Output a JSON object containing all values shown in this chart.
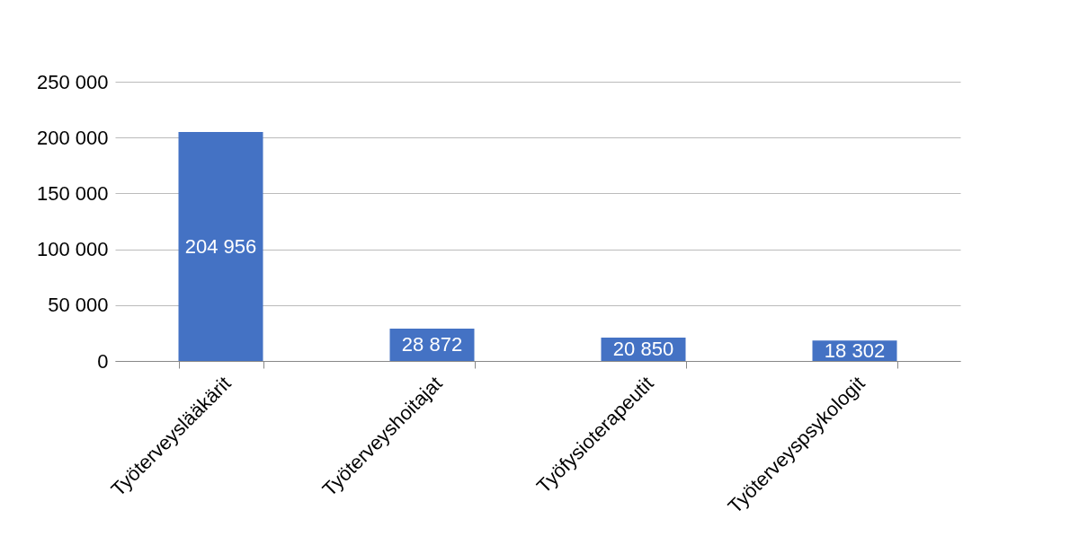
{
  "chart_data": {
    "type": "bar",
    "categories": [
      "Työterveyslääkärit",
      "Työterveyshoitajat",
      "Työfysioterapeutit",
      "Työterveyspsykologit"
    ],
    "values": [
      204956,
      28872,
      20850,
      18302
    ],
    "value_labels": [
      "204 956",
      "28 872",
      "20 850",
      "18 302"
    ],
    "color": "#4472c4",
    "ylim": [
      0,
      250000
    ],
    "yticks": [
      {
        "value": 0,
        "label": "0"
      },
      {
        "value": 50000,
        "label": "50 000"
      },
      {
        "value": 100000,
        "label": "100 000"
      },
      {
        "value": 150000,
        "label": "150 000"
      },
      {
        "value": 200000,
        "label": "200 000"
      },
      {
        "value": 250000,
        "label": "250 000"
      }
    ],
    "grid": "y"
  }
}
